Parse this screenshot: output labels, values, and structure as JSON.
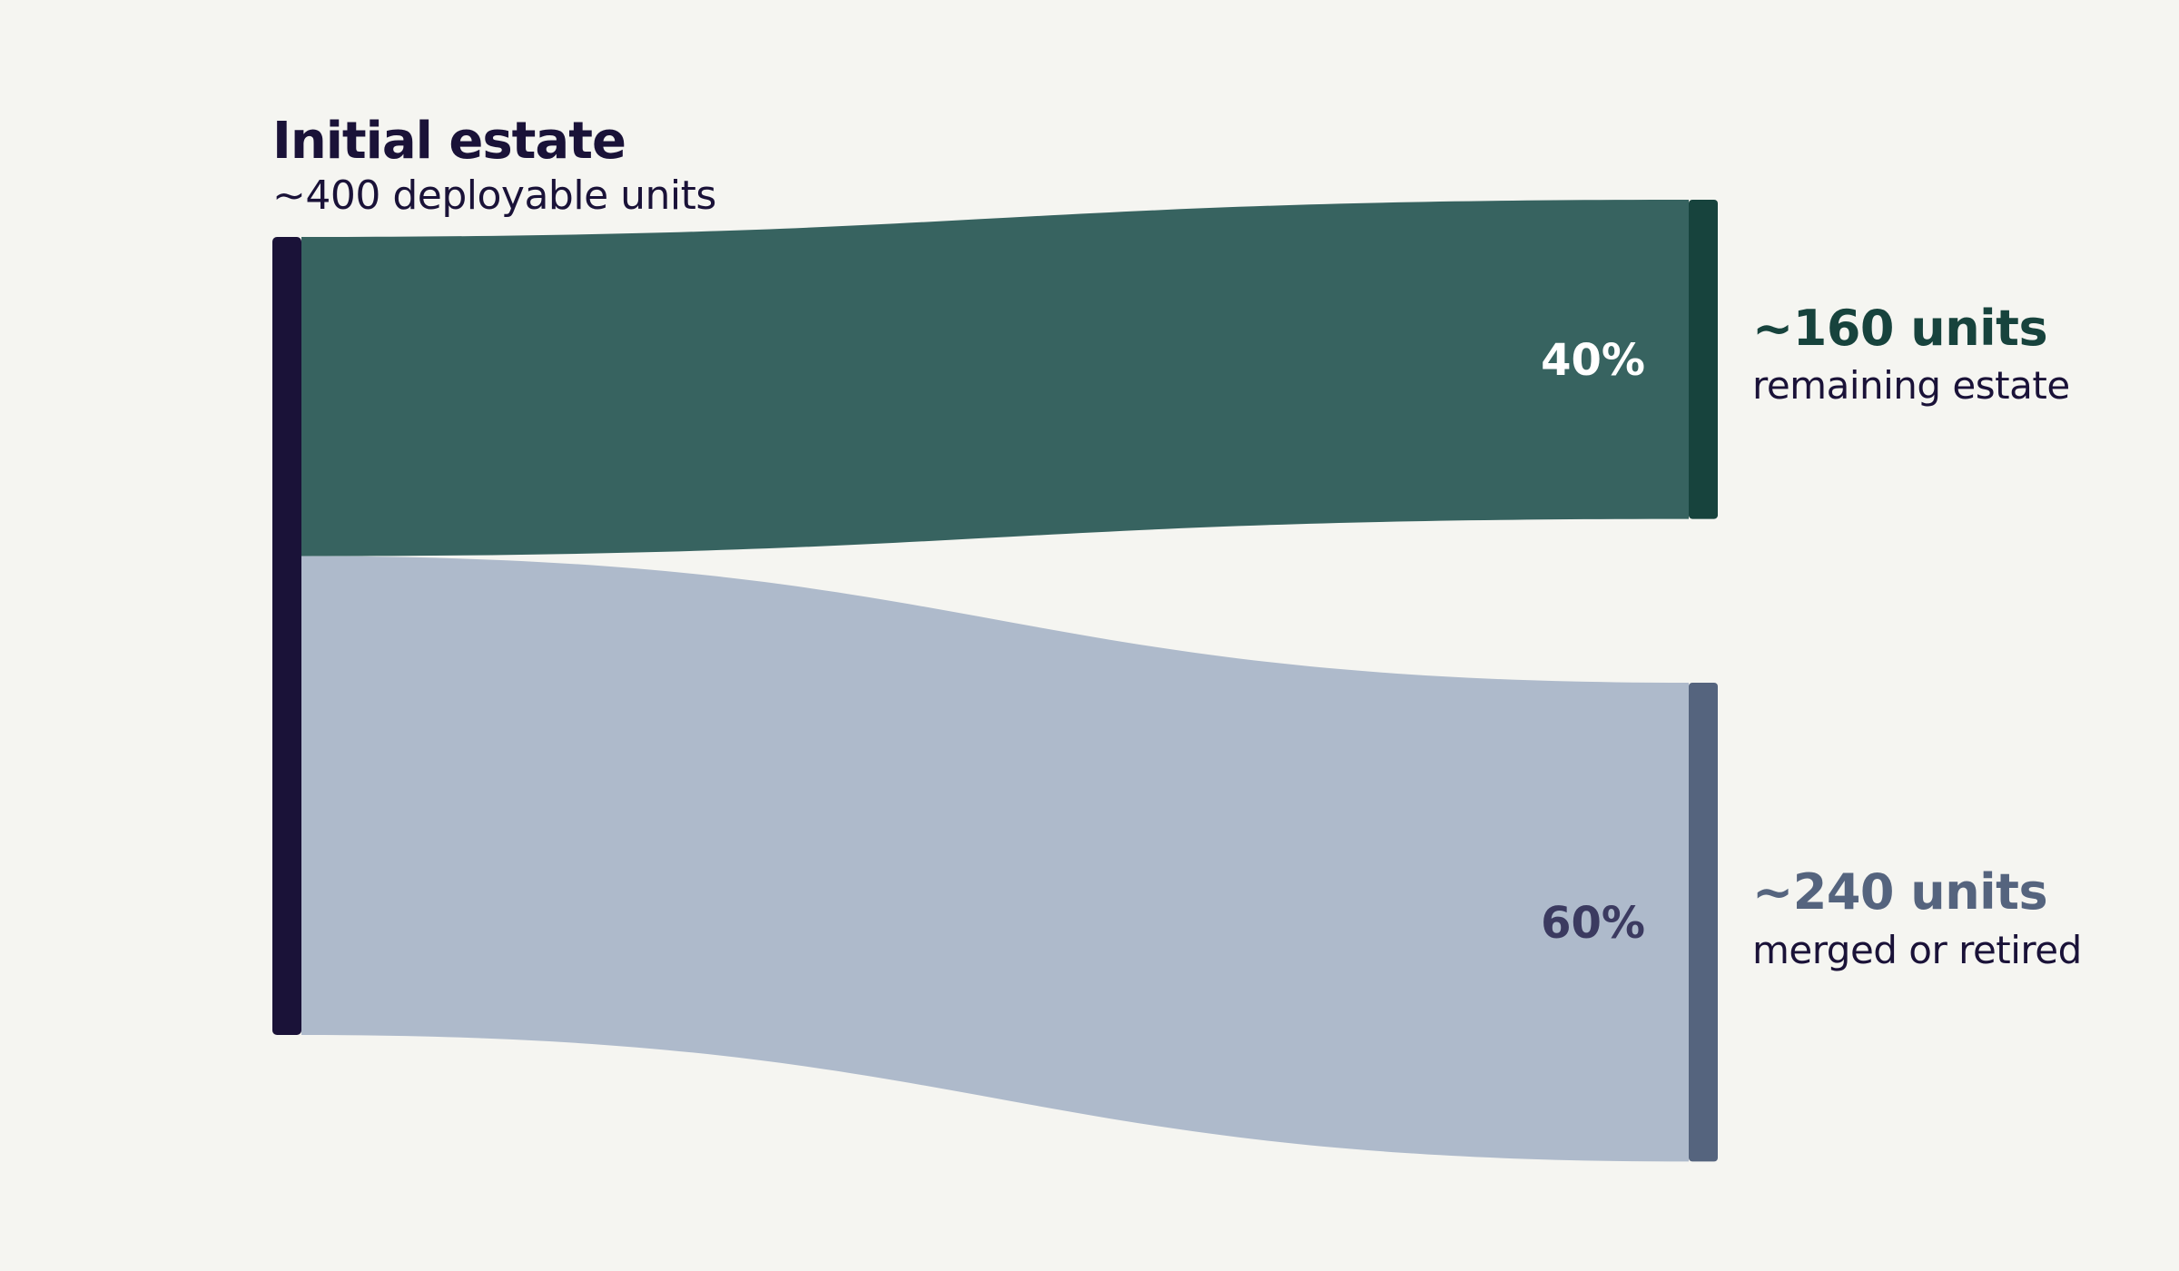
{
  "chart_data": {
    "type": "sankey",
    "source": {
      "title": "Initial estate",
      "subtitle": "~400 deployable units",
      "value": 400,
      "color": "#1a1238"
    },
    "flows": [
      {
        "percent_label": "40%",
        "share": 0.4,
        "value": 160,
        "target_value_label": "~160 units",
        "target_description": "remaining estate",
        "flow_color": "#376360",
        "node_color": "#17433d"
      },
      {
        "percent_label": "60%",
        "share": 0.6,
        "value": 240,
        "target_value_label": "~240 units",
        "target_description": "merged or retired",
        "flow_color": "#aebacb",
        "node_color": "#55647e"
      }
    ]
  }
}
